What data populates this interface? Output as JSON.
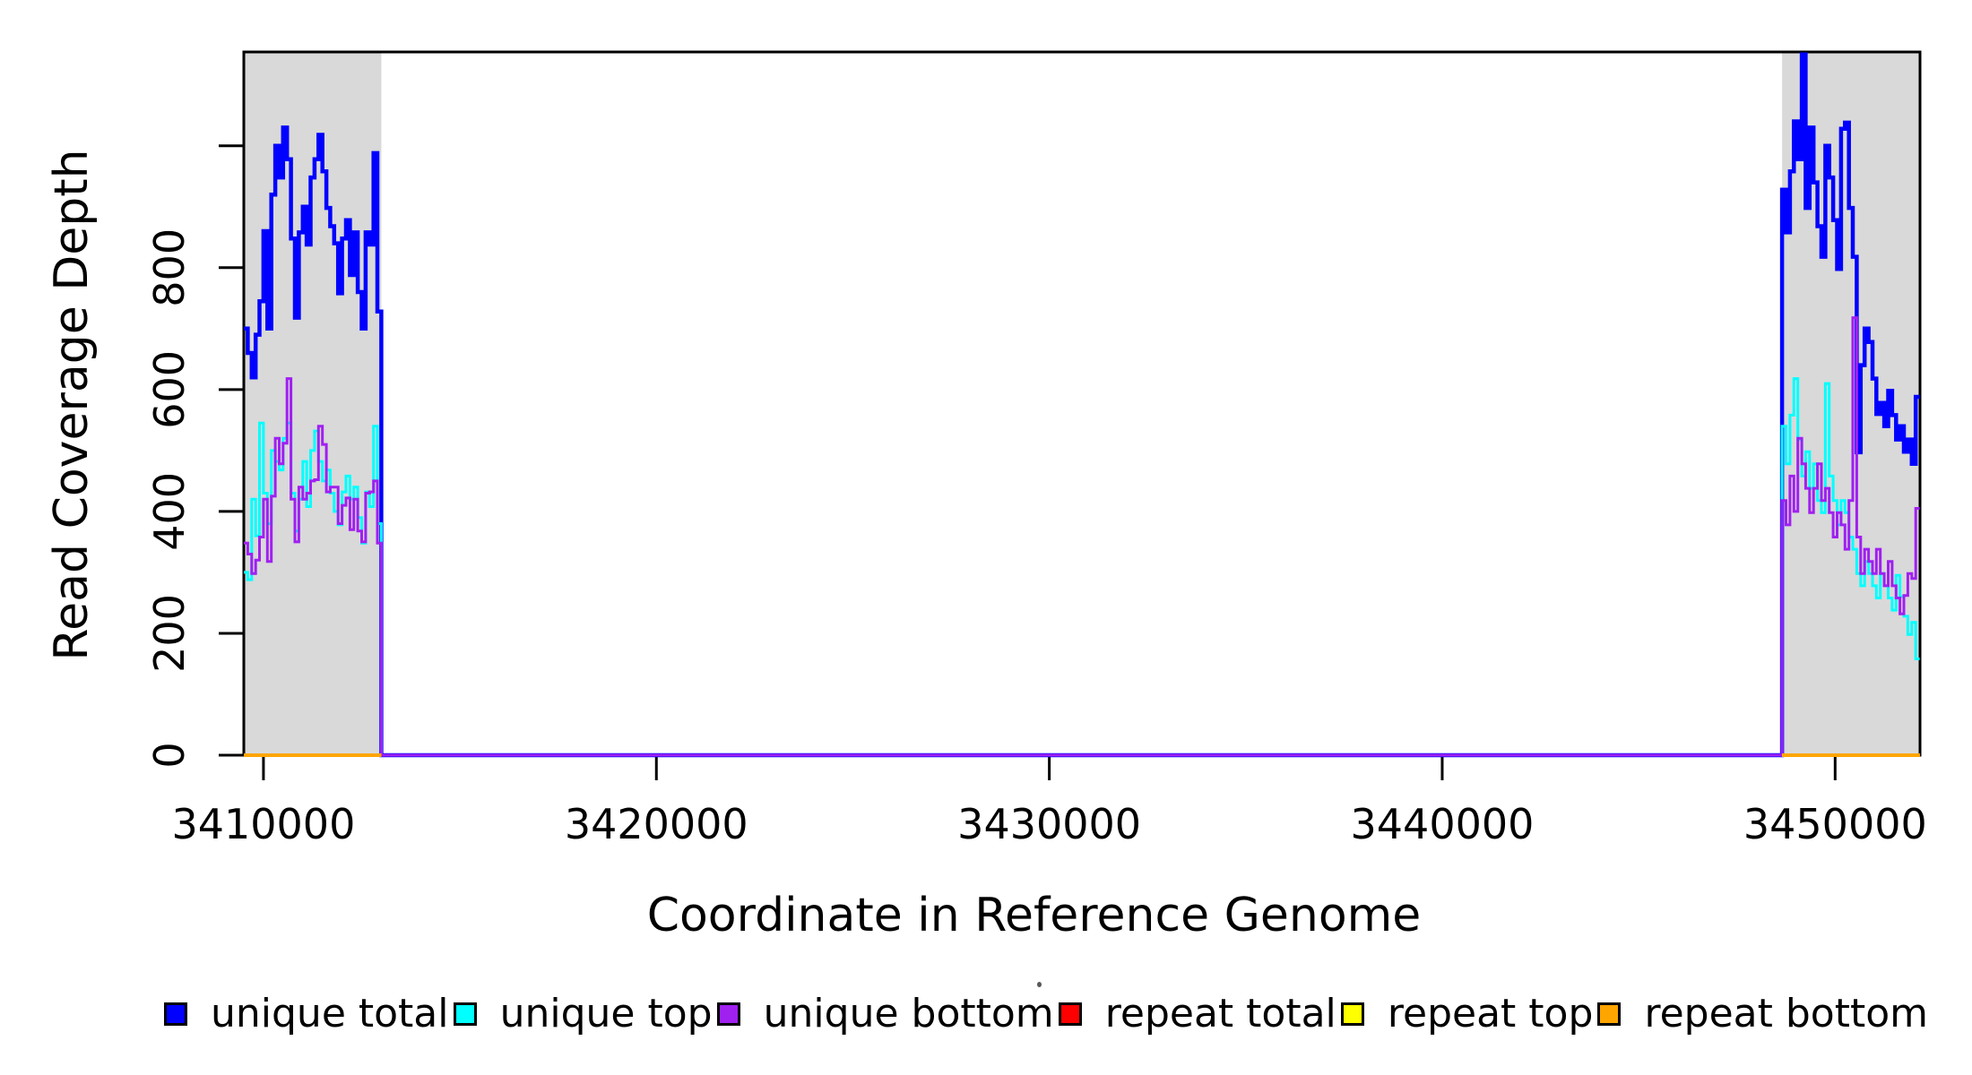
{
  "figure": {
    "background_color": "#FFFFFF",
    "repeat_region_shading_color": "#D9D9D9",
    "axis_color": "#000000",
    "legend": {
      "items": [
        {
          "id": "unique-total",
          "label": "unique total",
          "color": "#0000FF"
        },
        {
          "id": "unique-top",
          "label": "unique top",
          "color": "#00FFFF"
        },
        {
          "id": "unique-bottom",
          "label": "unique bottom",
          "color": "#A020F0"
        },
        {
          "id": "repeat-total",
          "label": "repeat total",
          "color": "#FF0000"
        },
        {
          "id": "repeat-top",
          "label": "repeat top",
          "color": "#FFFF00"
        },
        {
          "id": "repeat-bottom",
          "label": "repeat bottom",
          "color": "#FFA500"
        }
      ]
    }
  },
  "chart_data": {
    "type": "line",
    "subtype": "step-coverage",
    "title": "",
    "xlabel": "Coordinate in Reference Genome",
    "ylabel": "Read Coverage Depth",
    "x_range": [
      3409500,
      3452160
    ],
    "y_range": [
      0,
      1154
    ],
    "grid": false,
    "legend_position": "bottom",
    "x_ticks": [
      {
        "value": 3410000,
        "label": "3410000"
      },
      {
        "value": 3420000,
        "label": "3420000"
      },
      {
        "value": 3430000,
        "label": "3430000"
      },
      {
        "value": 3440000,
        "label": "3440000"
      },
      {
        "value": 3450000,
        "label": "3450000"
      }
    ],
    "y_ticks": [
      {
        "value": 0,
        "label": "0"
      },
      {
        "value": 200,
        "label": "200"
      },
      {
        "value": 400,
        "label": "400"
      },
      {
        "value": 600,
        "label": "600"
      },
      {
        "value": 800,
        "label": "800"
      },
      {
        "value": 1000,
        "label": ""
      }
    ],
    "shaded_regions": [
      {
        "name": "left-repeat-region",
        "start": 3409500,
        "end": 3413000
      },
      {
        "name": "right-repeat-region",
        "start": 3448650,
        "end": 3452160
      }
    ],
    "bin_size": 100,
    "series": [
      {
        "name": "unique total",
        "color": "#0000FF",
        "width": 4.5,
        "continuous": true,
        "segments": [
          {
            "x0": 3409500,
            "dx": 100,
            "values": [
              700,
              660,
              620,
              690,
              745,
              860,
              700,
              920,
              1000,
              948,
              1030,
              978,
              848,
              718,
              858,
              900,
              838,
              948,
              978,
              1018,
              958,
              898,
              868,
              840,
              758,
              848,
              878,
              788,
              858,
              760,
              700,
              858,
              838,
              988,
              728
            ]
          },
          {
            "x0": 3413000,
            "dx": 35650,
            "values": [
              0
            ]
          },
          {
            "x0": 3448650,
            "dx": 100,
            "values": [
              928,
              858,
              958,
              1040,
              978,
              1150,
              898,
              1030,
              940,
              868,
              818,
              1000,
              948,
              878,
              798,
              1028,
              1038,
              898,
              818,
              497,
              640,
              700,
              678,
              618,
              560,
              578,
              540,
              598,
              558,
              518,
              540,
              498,
              518,
              478,
              588
            ]
          }
        ]
      },
      {
        "name": "unique top",
        "color": "#00FFFF",
        "width": 3,
        "continuous": true,
        "segments": [
          {
            "x0": 3409500,
            "dx": 100,
            "values": [
              300,
              288,
              420,
              360,
              545,
              430,
              380,
              500,
              482,
              468,
              520,
              545,
              430,
              368,
              420,
              482,
              408,
              500,
              532,
              482,
              450,
              468,
              430,
              400,
              378,
              432,
              458,
              420,
              440,
              390,
              348,
              432,
              408,
              540,
              380
            ]
          },
          {
            "x0": 3413000,
            "dx": 35650,
            "values": [
              0
            ]
          },
          {
            "x0": 3448650,
            "dx": 100,
            "values": [
              540,
              478,
              558,
              618,
              518,
              458,
              498,
              438,
              478,
              418,
              398,
              610,
              458,
              418,
              378,
              418,
              398,
              358,
              338,
              298,
              278,
              318,
              298,
              278,
              258,
              298,
              278,
              258,
              238,
              295,
              260,
              228,
              198,
              218,
              158
            ]
          }
        ]
      },
      {
        "name": "unique bottom",
        "color": "#A020F0",
        "width": 3,
        "continuous": true,
        "segments": [
          {
            "x0": 3409500,
            "dx": 100,
            "values": [
              348,
              330,
              298,
              320,
              358,
              420,
              318,
              425,
              520,
              478,
              512,
              618,
              420,
              350,
              440,
              420,
              430,
              450,
              452,
              540,
              510,
              432,
              440,
              440,
              380,
              410,
              422,
              370,
              420,
              368,
              350,
              430,
              432,
              450,
              348
            ]
          },
          {
            "x0": 3413000,
            "dx": 35650,
            "values": [
              0
            ]
          },
          {
            "x0": 3448650,
            "dx": 100,
            "values": [
              418,
              378,
              458,
              400,
              520,
              478,
              438,
              398,
              438,
              478,
              418,
              438,
              398,
              358,
              398,
              378,
              338,
              418,
              718,
              358,
              298,
              338,
              318,
              298,
              338,
              298,
              278,
              318,
              278,
              258,
              232,
              262,
              298,
              290,
              405
            ]
          }
        ]
      },
      {
        "name": "repeat total",
        "color": "#FF0000",
        "width": 4,
        "continuous": false,
        "segments": [
          {
            "x0": 3409500,
            "dx": 3500,
            "values": [
              0
            ]
          },
          {
            "x0": 3448650,
            "dx": 3510,
            "values": [
              0
            ]
          }
        ]
      },
      {
        "name": "repeat top",
        "color": "#FFFF00",
        "width": 4,
        "continuous": false,
        "segments": [
          {
            "x0": 3409500,
            "dx": 3500,
            "values": [
              0
            ]
          },
          {
            "x0": 3448650,
            "dx": 3510,
            "values": [
              0
            ]
          }
        ]
      },
      {
        "name": "repeat bottom",
        "color": "#FFA500",
        "width": 4,
        "continuous": false,
        "segments": [
          {
            "x0": 3409500,
            "dx": 3500,
            "values": [
              0
            ]
          },
          {
            "x0": 3448650,
            "dx": 3510,
            "values": [
              0
            ]
          }
        ]
      }
    ]
  }
}
